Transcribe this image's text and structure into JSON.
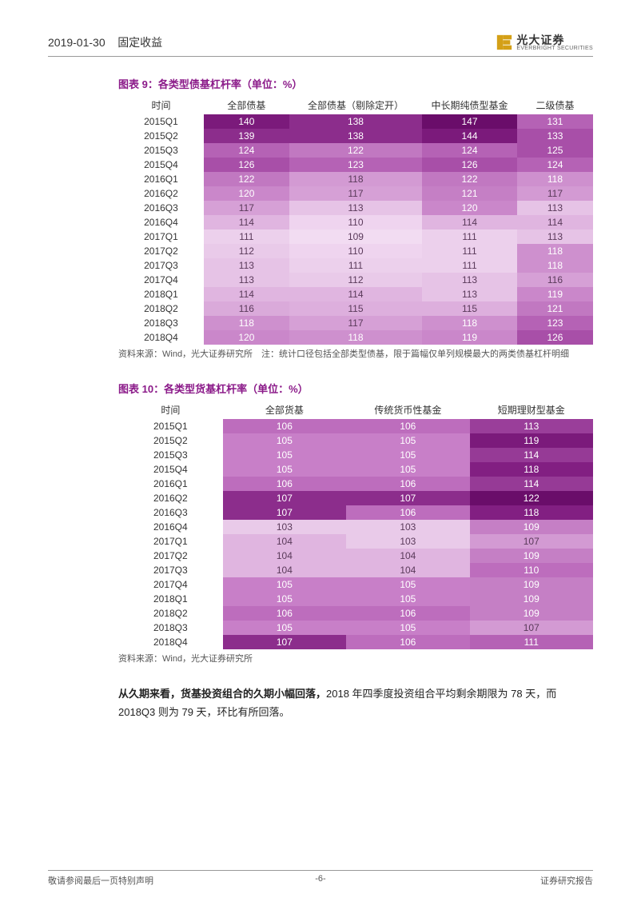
{
  "header": {
    "date": "2019-01-30",
    "category": "固定收益",
    "logo_cn": "光大证券",
    "logo_en": "EVERBRIGHT SECURITIES"
  },
  "table9": {
    "title": "图表 9：各类型债基杠杆率（单位：%）",
    "columns": [
      "时间",
      "全部债基",
      "全部债基（剔除定开）",
      "中长期纯债型基金",
      "二级债基"
    ],
    "col_widths": [
      "18%",
      "18%",
      "28%",
      "20%",
      "16%"
    ],
    "rows": [
      {
        "time": "2015Q1",
        "v": [
          140,
          138,
          147,
          131
        ],
        "c": [
          "#7b1a7b",
          "#8c2d8c",
          "#6a0d6a",
          "#b562b5"
        ]
      },
      {
        "time": "2015Q2",
        "v": [
          139,
          138,
          144,
          133
        ],
        "c": [
          "#8c2d8c",
          "#8c2d8c",
          "#7b1a7b",
          "#a84fa8"
        ]
      },
      {
        "time": "2015Q3",
        "v": [
          124,
          122,
          124,
          125
        ],
        "c": [
          "#b562b5",
          "#c178c1",
          "#b562b5",
          "#a84fa8"
        ]
      },
      {
        "time": "2015Q4",
        "v": [
          126,
          123,
          126,
          124
        ],
        "c": [
          "#a84fa8",
          "#b562b5",
          "#a84fa8",
          "#b562b5"
        ]
      },
      {
        "time": "2016Q1",
        "v": [
          122,
          118,
          122,
          118
        ],
        "c": [
          "#c178c1",
          "#d39ad3",
          "#c178c1",
          "#ce90ce"
        ]
      },
      {
        "time": "2016Q2",
        "v": [
          120,
          117,
          121,
          117
        ],
        "c": [
          "#ca87ca",
          "#d6a0d6",
          "#c57fc5",
          "#d39ad3"
        ]
      },
      {
        "time": "2016Q3",
        "v": [
          117,
          113,
          120,
          113
        ],
        "c": [
          "#d6a0d6",
          "#e6c3e6",
          "#ca87ca",
          "#e6c3e6"
        ]
      },
      {
        "time": "2016Q4",
        "v": [
          114,
          110,
          114,
          114
        ],
        "c": [
          "#e0b5e0",
          "#efd4ef",
          "#e0b5e0",
          "#e0b5e0"
        ]
      },
      {
        "time": "2017Q1",
        "v": [
          111,
          109,
          111,
          113
        ],
        "c": [
          "#ecd0ec",
          "#f2dcf2",
          "#ecd0ec",
          "#e6c3e6"
        ]
      },
      {
        "time": "2017Q2",
        "v": [
          112,
          110,
          111,
          118
        ],
        "c": [
          "#e9cae9",
          "#efd4ef",
          "#ecd0ec",
          "#ce90ce"
        ]
      },
      {
        "time": "2017Q3",
        "v": [
          113,
          111,
          111,
          118
        ],
        "c": [
          "#e6c3e6",
          "#ecd0ec",
          "#ecd0ec",
          "#ce90ce"
        ]
      },
      {
        "time": "2017Q4",
        "v": [
          113,
          112,
          113,
          116
        ],
        "c": [
          "#e6c3e6",
          "#e9cae9",
          "#e6c3e6",
          "#d6a0d6"
        ]
      },
      {
        "time": "2018Q1",
        "v": [
          114,
          114,
          113,
          119
        ],
        "c": [
          "#e0b5e0",
          "#e0b5e0",
          "#e6c3e6",
          "#ca87ca"
        ]
      },
      {
        "time": "2018Q2",
        "v": [
          116,
          115,
          115,
          121
        ],
        "c": [
          "#daaada",
          "#ddafdd",
          "#ddafdd",
          "#c178c1"
        ]
      },
      {
        "time": "2018Q3",
        "v": [
          118,
          117,
          118,
          123
        ],
        "c": [
          "#ce90ce",
          "#d6a0d6",
          "#ce90ce",
          "#b562b5"
        ]
      },
      {
        "time": "2018Q4",
        "v": [
          120,
          118,
          119,
          126
        ],
        "c": [
          "#ca87ca",
          "#ce90ce",
          "#ca87ca",
          "#a84fa8"
        ]
      }
    ],
    "source": "资料来源：Wind，光大证券研究所　注：统计口径包括全部类型债基，限于篇幅仅单列规模最大的两类债基杠杆明细",
    "text_dark_threshold": 115
  },
  "table10": {
    "title": "图表 10：各类型货基杠杆率（单位：%）",
    "columns": [
      "时间",
      "全部货基",
      "传统货币性基金",
      "短期理财型基金"
    ],
    "col_widths": [
      "22%",
      "26%",
      "26%",
      "26%"
    ],
    "rows": [
      {
        "time": "2015Q1",
        "v": [
          106,
          106,
          113
        ],
        "c": [
          "#bd6dbd",
          "#bd6dbd",
          "#9a3e9a"
        ]
      },
      {
        "time": "2015Q2",
        "v": [
          105,
          105,
          119
        ],
        "c": [
          "#c87fc8",
          "#c87fc8",
          "#7b1a7b"
        ]
      },
      {
        "time": "2015Q3",
        "v": [
          105,
          105,
          114
        ],
        "c": [
          "#c87fc8",
          "#c87fc8",
          "#963a96"
        ]
      },
      {
        "time": "2015Q4",
        "v": [
          105,
          105,
          118
        ],
        "c": [
          "#c87fc8",
          "#c87fc8",
          "#821f82"
        ]
      },
      {
        "time": "2016Q1",
        "v": [
          106,
          106,
          114
        ],
        "c": [
          "#bd6dbd",
          "#bd6dbd",
          "#963a96"
        ]
      },
      {
        "time": "2016Q2",
        "v": [
          107,
          107,
          122
        ],
        "c": [
          "#8c2d8c",
          "#8c2d8c",
          "#6a0d6a"
        ]
      },
      {
        "time": "2016Q3",
        "v": [
          107,
          106,
          118
        ],
        "c": [
          "#8c2d8c",
          "#bd6dbd",
          "#821f82"
        ]
      },
      {
        "time": "2016Q4",
        "v": [
          103,
          103,
          109
        ],
        "c": [
          "#e9cae9",
          "#e9cae9",
          "#c57fc5"
        ]
      },
      {
        "time": "2017Q1",
        "v": [
          104,
          103,
          107
        ],
        "c": [
          "#e0b5e0",
          "#e9cae9",
          "#d39ad3"
        ]
      },
      {
        "time": "2017Q2",
        "v": [
          104,
          104,
          109
        ],
        "c": [
          "#e0b5e0",
          "#e0b5e0",
          "#c57fc5"
        ]
      },
      {
        "time": "2017Q3",
        "v": [
          104,
          104,
          110
        ],
        "c": [
          "#e0b5e0",
          "#e0b5e0",
          "#bd6dbd"
        ]
      },
      {
        "time": "2017Q4",
        "v": [
          105,
          105,
          109
        ],
        "c": [
          "#c87fc8",
          "#c87fc8",
          "#c57fc5"
        ]
      },
      {
        "time": "2018Q1",
        "v": [
          105,
          105,
          109
        ],
        "c": [
          "#c87fc8",
          "#c87fc8",
          "#c57fc5"
        ]
      },
      {
        "time": "2018Q2",
        "v": [
          106,
          106,
          109
        ],
        "c": [
          "#bd6dbd",
          "#bd6dbd",
          "#c57fc5"
        ]
      },
      {
        "time": "2018Q3",
        "v": [
          105,
          105,
          107
        ],
        "c": [
          "#c87fc8",
          "#c87fc8",
          "#d39ad3"
        ]
      },
      {
        "time": "2018Q4",
        "v": [
          107,
          106,
          111
        ],
        "c": [
          "#8c2d8c",
          "#bd6dbd",
          "#b562b5"
        ]
      }
    ],
    "source": "资料来源：Wind，光大证券研究所",
    "text_dark_threshold": 107
  },
  "body_text": {
    "bold": "从久期来看，货基投资组合的久期小幅回落，",
    "rest": "2018 年四季度投资组合平均剩余期限为 78 天，而 2018Q3 则为 79 天，环比有所回落。"
  },
  "footer": {
    "left": "敬请参阅最后一页特别声明",
    "center": "-6-",
    "right": "证券研究报告"
  }
}
